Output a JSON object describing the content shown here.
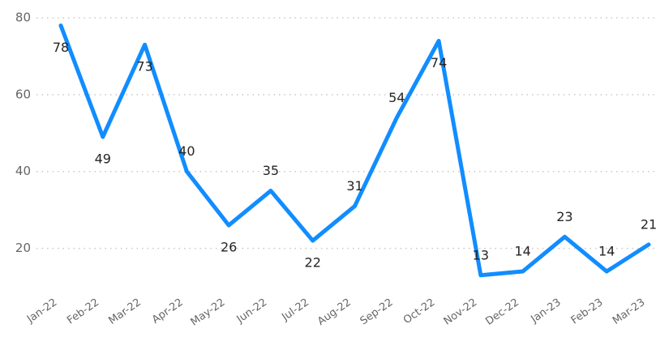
{
  "chart_data": {
    "type": "line",
    "categories": [
      "Jan-22",
      "Feb-22",
      "Mar-22",
      "Apr-22",
      "May-22",
      "Jun-22",
      "Jul-22",
      "Aug-22",
      "Sep-22",
      "Oct-22",
      "Nov-22",
      "Dec-22",
      "Jan-23",
      "Feb-23",
      "Mar-23"
    ],
    "values": [
      78,
      49,
      73,
      40,
      26,
      35,
      22,
      31,
      54,
      74,
      13,
      14,
      23,
      14,
      21
    ],
    "color": "#118dff",
    "ylim": [
      10,
      80
    ],
    "yticks": [
      20,
      40,
      60,
      80
    ],
    "grid": true
  }
}
